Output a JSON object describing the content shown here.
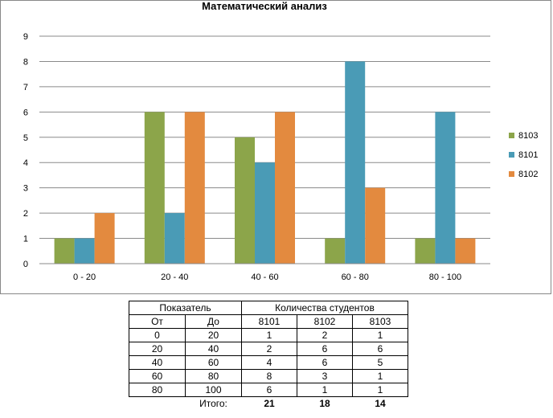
{
  "chart_data": {
    "type": "bar",
    "title": "Математический анализ",
    "categories": [
      "0 - 20",
      "20 - 40",
      "40 - 60",
      "60 - 80",
      "80 - 100"
    ],
    "series": [
      {
        "name": "8103",
        "values": [
          1,
          6,
          5,
          1,
          1
        ],
        "color": "#8CA54A"
      },
      {
        "name": "8101",
        "values": [
          1,
          2,
          4,
          8,
          6
        ],
        "color": "#4A9BB6"
      },
      {
        "name": "8102",
        "values": [
          2,
          6,
          6,
          3,
          1
        ],
        "color": "#E38A3F"
      }
    ],
    "ylim": [
      0,
      9
    ],
    "yticks": [
      "0",
      "1",
      "2",
      "3",
      "4",
      "5",
      "6",
      "7",
      "8",
      "9"
    ],
    "grid": true,
    "legend": "right"
  },
  "table": {
    "header1": {
      "indicator": "Показатель",
      "students": "Количества студентов"
    },
    "header2": {
      "from": "От",
      "to": "До",
      "groups": [
        "8101",
        "8102",
        "8103"
      ]
    },
    "rows": [
      {
        "from": "0",
        "to": "20",
        "values": [
          "1",
          "2",
          "1"
        ]
      },
      {
        "from": "20",
        "to": "40",
        "values": [
          "2",
          "6",
          "6"
        ]
      },
      {
        "from": "40",
        "to": "60",
        "values": [
          "4",
          "6",
          "5"
        ]
      },
      {
        "from": "60",
        "to": "80",
        "values": [
          "8",
          "3",
          "1"
        ]
      },
      {
        "from": "80",
        "to": "100",
        "values": [
          "6",
          "1",
          "1"
        ]
      }
    ],
    "total": {
      "label": "Итого:",
      "values": [
        "21",
        "18",
        "14"
      ]
    }
  }
}
